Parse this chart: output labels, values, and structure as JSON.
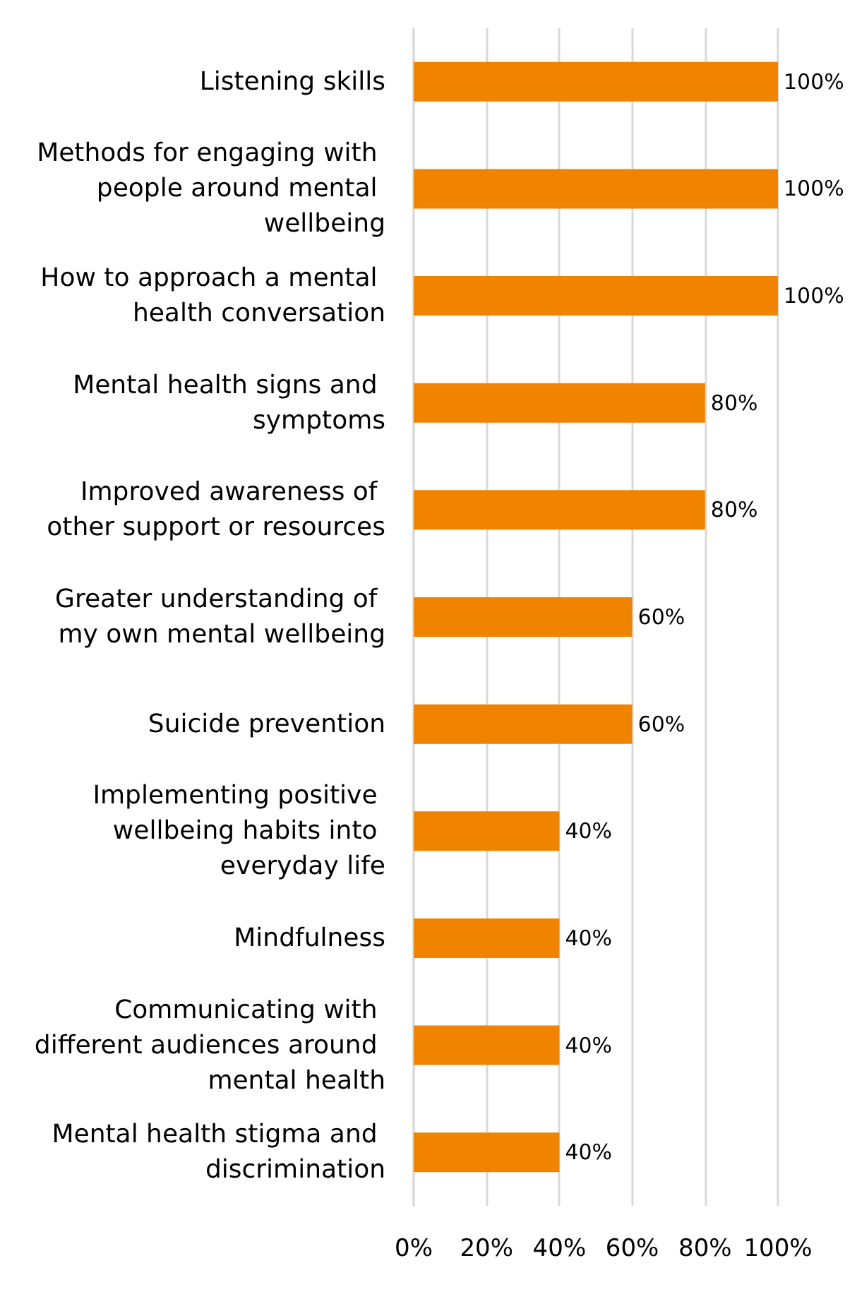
{
  "chart_data": {
    "type": "bar",
    "orientation": "horizontal",
    "categories": [
      "Listening skills",
      "Methods for engaging with people around mental wellbeing",
      "How to approach a mental health conversation",
      "Mental health signs and symptoms",
      "Improved awareness of other support or resources",
      "Greater understanding of my own mental wellbeing",
      "Suicide prevention",
      "Implementing positive wellbeing habits into everyday life",
      "Mindfulness",
      "Communicating with different audiences around mental health",
      "Mental health stigma and discrimination"
    ],
    "values": [
      100,
      100,
      100,
      80,
      80,
      60,
      60,
      40,
      40,
      40,
      40
    ],
    "value_labels": [
      "100%",
      "100%",
      "100%",
      "80%",
      "80%",
      "60%",
      "60%",
      "40%",
      "40%",
      "40%",
      "40%"
    ],
    "color": "#f08400",
    "xlim": [
      0,
      100
    ],
    "xticks": [
      {
        "value": 0,
        "label": "0%"
      },
      {
        "value": 20,
        "label": "20%"
      },
      {
        "value": 40,
        "label": "40%"
      },
      {
        "value": 60,
        "label": "60%"
      },
      {
        "value": 80,
        "label": "80%"
      },
      {
        "value": 100,
        "label": "100%"
      }
    ],
    "grid": "x"
  }
}
